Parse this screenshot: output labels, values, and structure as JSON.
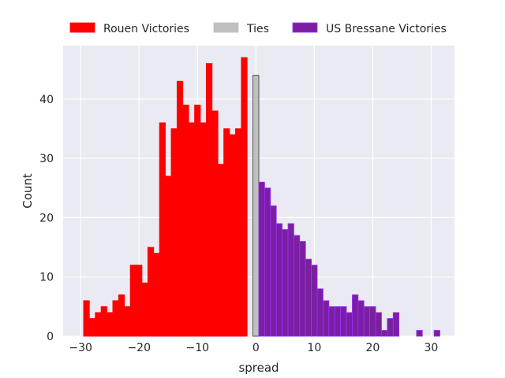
{
  "chart_data": {
    "type": "bar",
    "title": "",
    "xlabel": "spread",
    "ylabel": "Count",
    "xlim": [
      -33,
      34
    ],
    "ylim": [
      0,
      49
    ],
    "x_ticks": [
      -30,
      -20,
      -10,
      0,
      10,
      20,
      30
    ],
    "x_tick_labels": [
      "−30",
      "−20",
      "−10",
      "0",
      "10",
      "20",
      "30"
    ],
    "y_ticks": [
      0,
      10,
      20,
      30,
      40
    ],
    "y_tick_labels": [
      "0",
      "10",
      "20",
      "30",
      "40"
    ],
    "grid": true,
    "legend_position": "top",
    "bin_width": 1,
    "series": [
      {
        "name": "Rouen Victories",
        "color": "#ff0000",
        "edge_color": "#ff0000",
        "x": [
          -29,
          -28,
          -27,
          -26,
          -25,
          -24,
          -23,
          -22,
          -21,
          -20,
          -19,
          -18,
          -17,
          -16,
          -15,
          -14,
          -13,
          -12,
          -11,
          -10,
          -9,
          -8,
          -7,
          -6,
          -5,
          -4,
          -3,
          -2,
          -1
        ],
        "values": [
          6,
          3,
          4,
          5,
          4,
          6,
          7,
          5,
          12,
          12,
          9,
          15,
          14,
          36,
          27,
          35,
          43,
          39,
          36,
          39,
          36,
          46,
          38,
          29,
          35,
          34,
          35,
          47,
          0
        ]
      },
      {
        "name": "Ties",
        "color": "#c0c0c0",
        "edge_color": "#333333",
        "x": [
          0
        ],
        "values": [
          44
        ]
      },
      {
        "name": "US Bressane Victories",
        "color": "#7b1fa2",
        "edge_color": "#9b30ff",
        "x": [
          1,
          2,
          3,
          4,
          5,
          6,
          7,
          8,
          9,
          10,
          11,
          12,
          13,
          14,
          15,
          16,
          17,
          18,
          19,
          20,
          21,
          22,
          23,
          24,
          25,
          26,
          27,
          28,
          29,
          30,
          31
        ],
        "values": [
          26,
          25,
          22,
          19,
          18,
          19,
          17,
          16,
          13,
          12,
          8,
          6,
          5,
          5,
          5,
          4,
          7,
          6,
          5,
          5,
          4,
          1,
          3,
          4,
          0,
          0,
          0,
          1,
          0,
          0,
          1
        ]
      }
    ]
  }
}
